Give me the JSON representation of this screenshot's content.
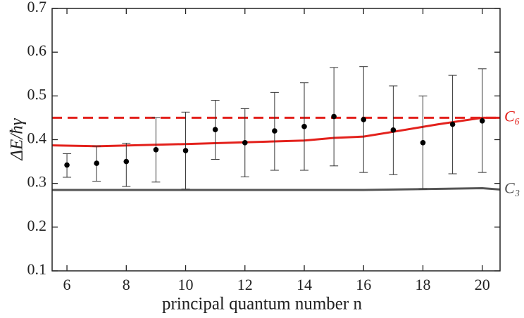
{
  "chart_data": {
    "type": "scatter",
    "x_label": "principal quantum number n",
    "y_label": "ΔE/ħγ",
    "xlim": [
      5.5,
      20.6
    ],
    "xticks": [
      6,
      8,
      10,
      12,
      14,
      16,
      18,
      20
    ],
    "ylim": [
      0.1,
      0.7
    ],
    "yticks": [
      0.1,
      0.2,
      0.3,
      0.4,
      0.5,
      0.6,
      0.7
    ],
    "points": {
      "color": "#000000",
      "x": [
        6,
        7,
        8,
        9,
        10,
        11,
        12,
        13,
        14,
        15,
        16,
        17,
        18,
        19,
        20
      ],
      "values": [
        0.342,
        0.346,
        0.35,
        0.377,
        0.375,
        0.423,
        0.393,
        0.42,
        0.43,
        0.453,
        0.446,
        0.422,
        0.393,
        0.435,
        0.443
      ],
      "lower": [
        0.314,
        0.305,
        0.293,
        0.303,
        0.287,
        0.355,
        0.315,
        0.33,
        0.33,
        0.34,
        0.325,
        0.32,
        0.287,
        0.322,
        0.325
      ],
      "upper": [
        0.368,
        0.385,
        0.392,
        0.45,
        0.463,
        0.49,
        0.471,
        0.508,
        0.53,
        0.565,
        0.567,
        0.523,
        0.5,
        0.547,
        0.562
      ]
    },
    "series": [
      {
        "name": "C₆",
        "color": "#e3211c",
        "dashed": true,
        "x": [
          5.5,
          20.6
        ],
        "values": [
          0.45,
          0.45
        ]
      },
      {
        "color": "#e3211c",
        "dashed": false,
        "x": [
          5.5,
          7,
          10,
          12,
          14,
          15,
          16,
          17,
          18.5,
          20,
          20.6
        ],
        "values": [
          0.387,
          0.385,
          0.39,
          0.394,
          0.398,
          0.404,
          0.407,
          0.418,
          0.435,
          0.45,
          0.45
        ]
      },
      {
        "name": "C₃",
        "color": "#555555",
        "dashed": false,
        "x": [
          5.5,
          10,
          16,
          20,
          20.6
        ],
        "values": [
          0.285,
          0.285,
          0.285,
          0.289,
          0.286
        ]
      }
    ]
  }
}
